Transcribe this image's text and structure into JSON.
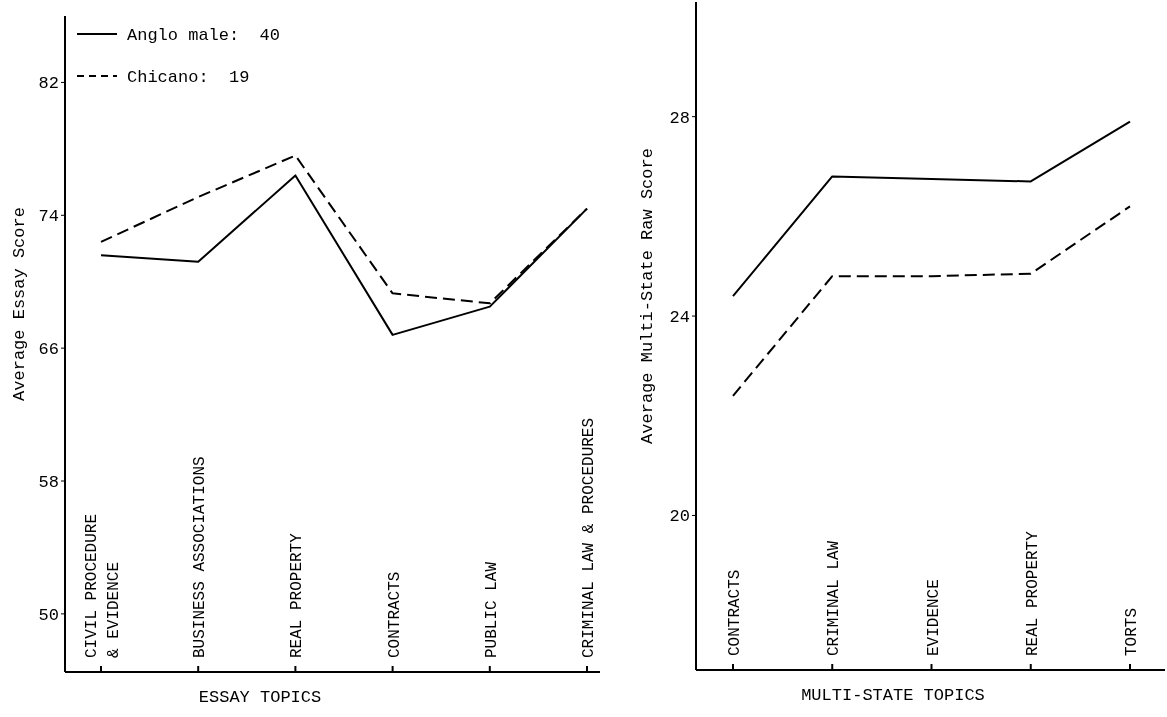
{
  "chart_data": [
    {
      "type": "line",
      "xlabel": "ESSAY TOPICS",
      "ylabel": "Average Essay Score",
      "categories": [
        "CIVIL PROCEDURE\n& EVIDENCE",
        "BUSINESS ASSOCIATIONS",
        "REAL PROPERTY",
        "CONTRACTS",
        "PUBLIC LAW",
        "CRIMINAL LAW & PROCEDURES"
      ],
      "ylim": [
        46.5,
        86
      ],
      "yticks": [
        50,
        58,
        66,
        74,
        82
      ],
      "legend": "top left",
      "series": [
        {
          "name": "Anglo male:  40",
          "color": "#000000",
          "line_style": "solid",
          "values": [
            71.6,
            71.2,
            76.4,
            66.8,
            68.5,
            74.4
          ]
        },
        {
          "name": "Chicano:  19",
          "color": "#000000",
          "line_style": "dashed",
          "values": [
            72.4,
            75.1,
            77.6,
            69.3,
            68.7,
            74.4
          ]
        }
      ]
    },
    {
      "type": "line",
      "xlabel": "MULTI-STATE TOPICS",
      "ylabel": "Average Multi-State Raw Score",
      "categories": [
        "CONTRACTS",
        "CRIMINAL LAW",
        "EVIDENCE",
        "REAL PROPERTY",
        "TORTS"
      ],
      "ylim": [
        16.9,
        30.3
      ],
      "yticks": [
        20,
        24,
        28
      ],
      "series": [
        {
          "color": "#000000",
          "line_style": "solid",
          "values": [
            24.4,
            26.8,
            26.75,
            26.7,
            27.9
          ]
        },
        {
          "color": "#000000",
          "line_style": "dashed",
          "values": [
            22.4,
            24.8,
            24.8,
            24.85,
            26.2
          ]
        }
      ]
    }
  ]
}
